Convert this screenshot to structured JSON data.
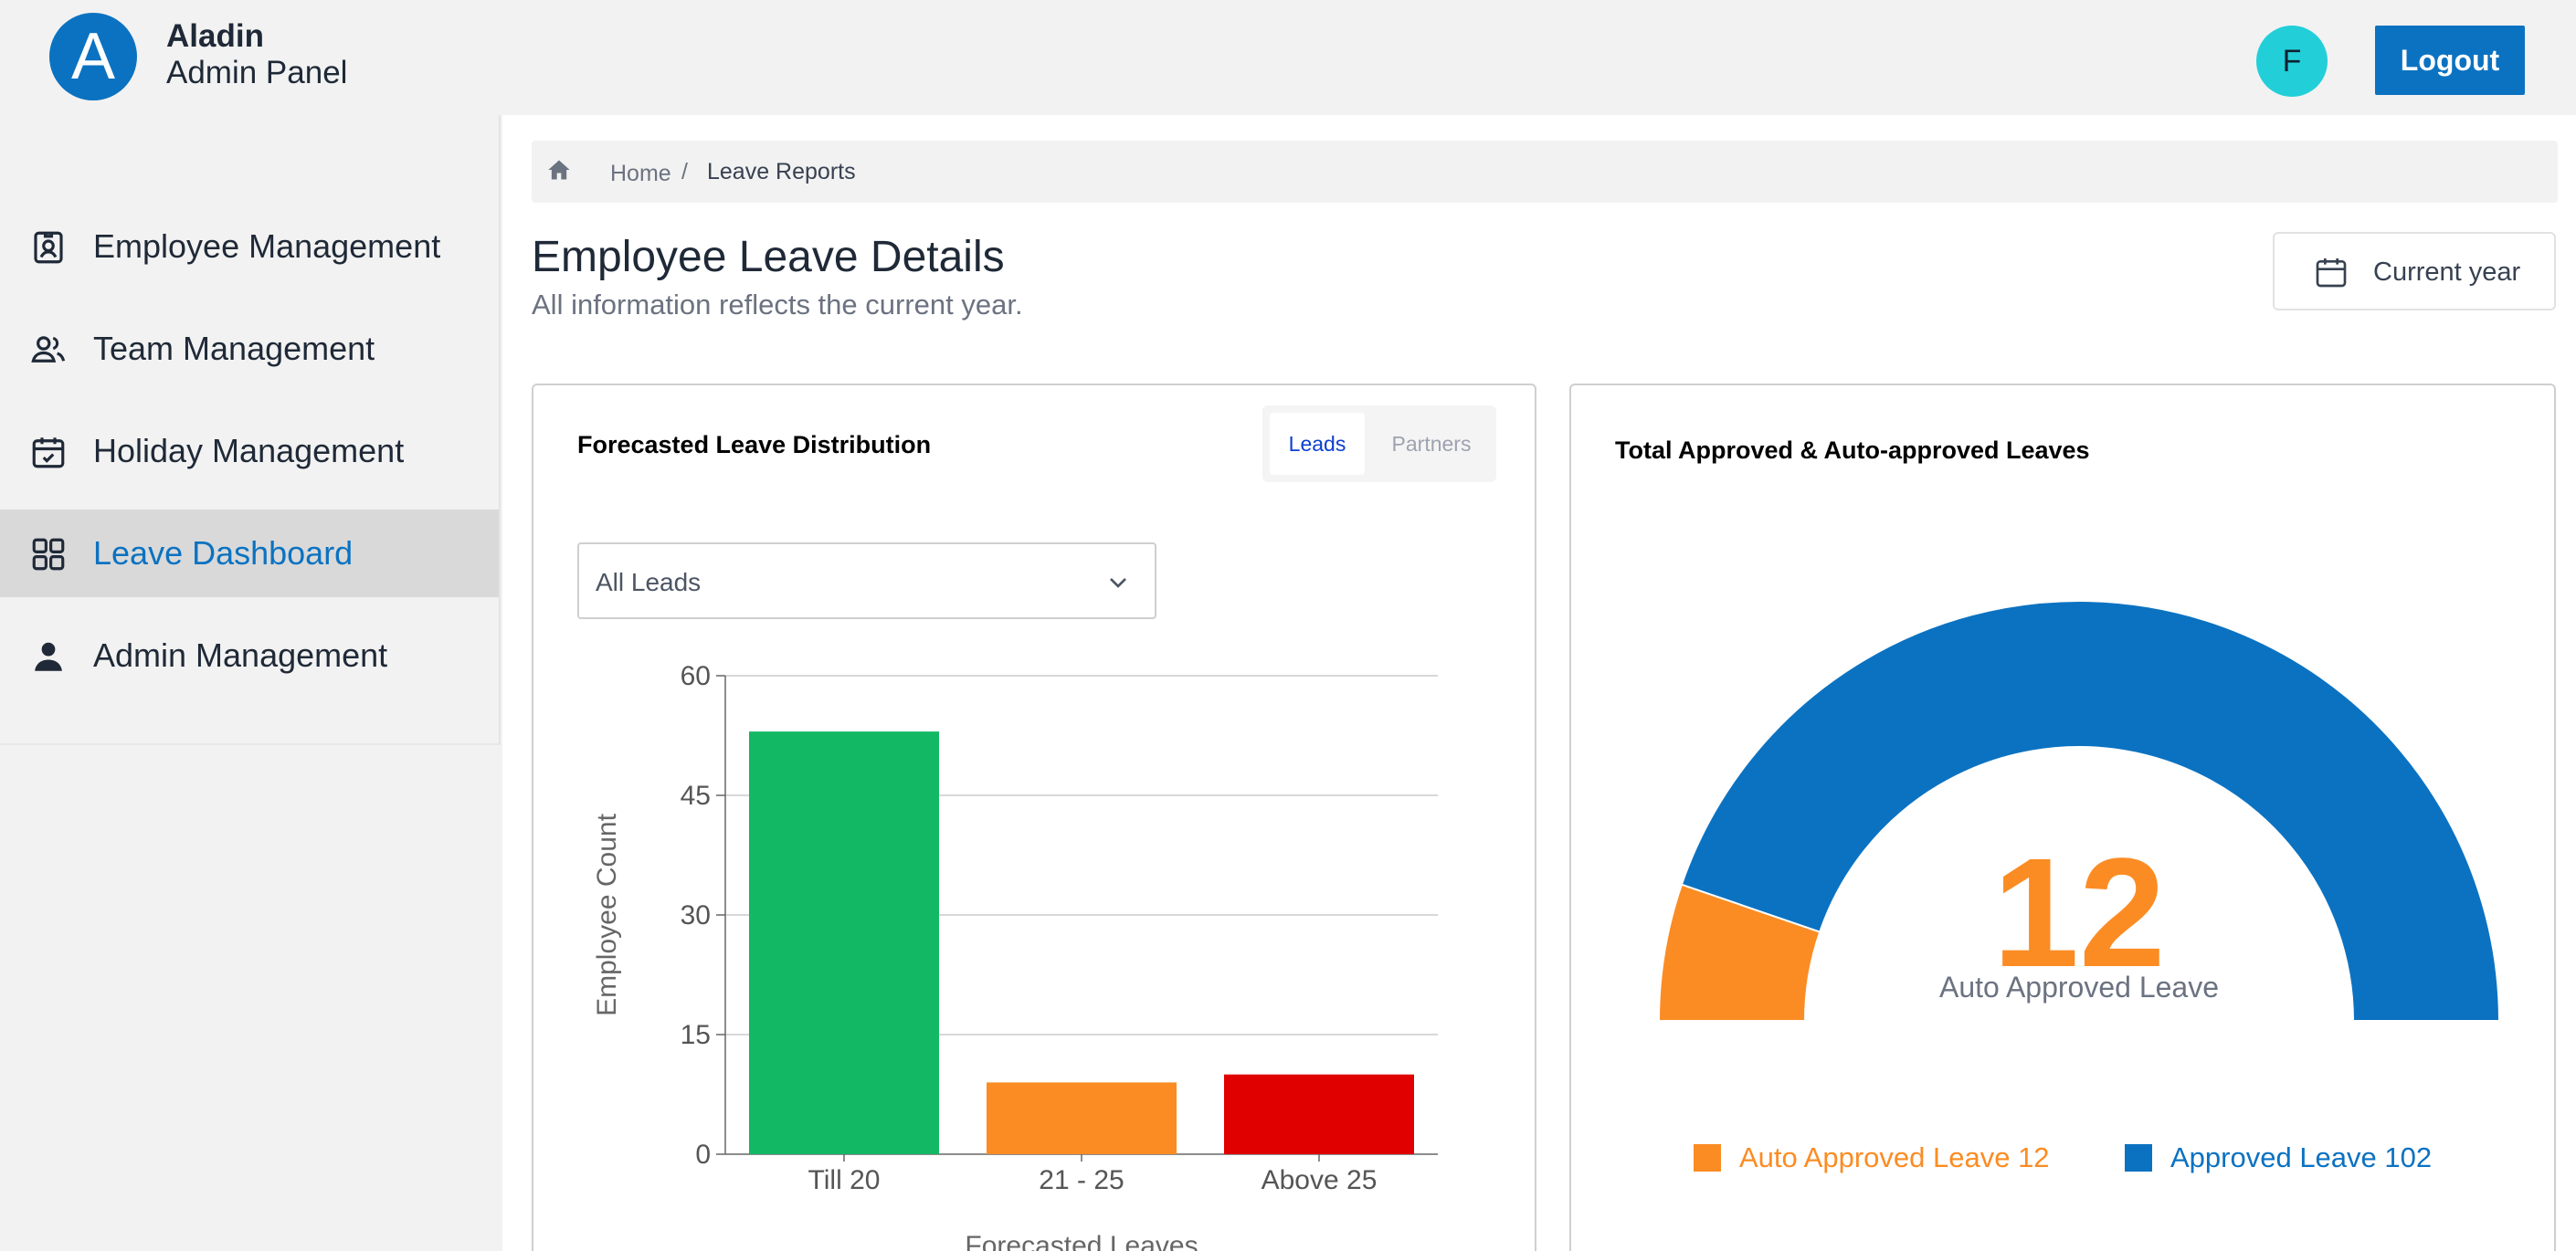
{
  "header": {
    "logo_letter": "A",
    "brand_title": "Aladin",
    "brand_subtitle": "Admin Panel",
    "avatar_letter": "F",
    "logout_label": "Logout"
  },
  "sidebar": {
    "items": [
      {
        "label": "Employee Management",
        "icon": "badge-icon"
      },
      {
        "label": "Team Management",
        "icon": "users-icon"
      },
      {
        "label": "Holiday Management",
        "icon": "calendar-check-icon"
      },
      {
        "label": "Leave Dashboard",
        "icon": "grid-icon",
        "active": true
      },
      {
        "label": "Admin Management",
        "icon": "person-icon"
      }
    ]
  },
  "breadcrumb": {
    "home": "Home",
    "separator": "/",
    "current": "Leave Reports"
  },
  "page": {
    "title": "Employee Leave Details",
    "subtitle": "All information reflects the current year.",
    "period_button": "Current year"
  },
  "forecast_card": {
    "title": "Forecasted Leave Distribution",
    "toggle": {
      "leads": "Leads",
      "partners": "Partners",
      "selected": "Leads"
    },
    "filter_value": "All Leads"
  },
  "approved_card": {
    "title": "Total Approved & Auto-approved Leaves",
    "center_value": "12",
    "center_label": "Auto Approved Leave",
    "legend": [
      {
        "label": "Auto Approved Leave 12",
        "color": "#fb8c23"
      },
      {
        "label": "Approved Leave 102",
        "color": "#0b72c1"
      }
    ]
  },
  "chart_data": [
    {
      "type": "bar",
      "title": "Forecasted Leave Distribution",
      "categories": [
        "Till 20",
        "21 - 25",
        "Above 25"
      ],
      "values": [
        53,
        9,
        10
      ],
      "colors": [
        "#13b865",
        "#fb8c23",
        "#e00000"
      ],
      "xlabel": "Forecasted Leaves",
      "ylabel": "Employee Count",
      "ylim": [
        0,
        60
      ],
      "yticks": [
        0,
        15,
        30,
        45,
        60
      ],
      "grid": true
    },
    {
      "type": "pie",
      "variant": "semi-donut",
      "title": "Total Approved & Auto-approved Leaves",
      "categories": [
        "Auto Approved Leave",
        "Approved Leave"
      ],
      "values": [
        12,
        102
      ],
      "colors": [
        "#fb8c23",
        "#0b72c1"
      ]
    }
  ]
}
